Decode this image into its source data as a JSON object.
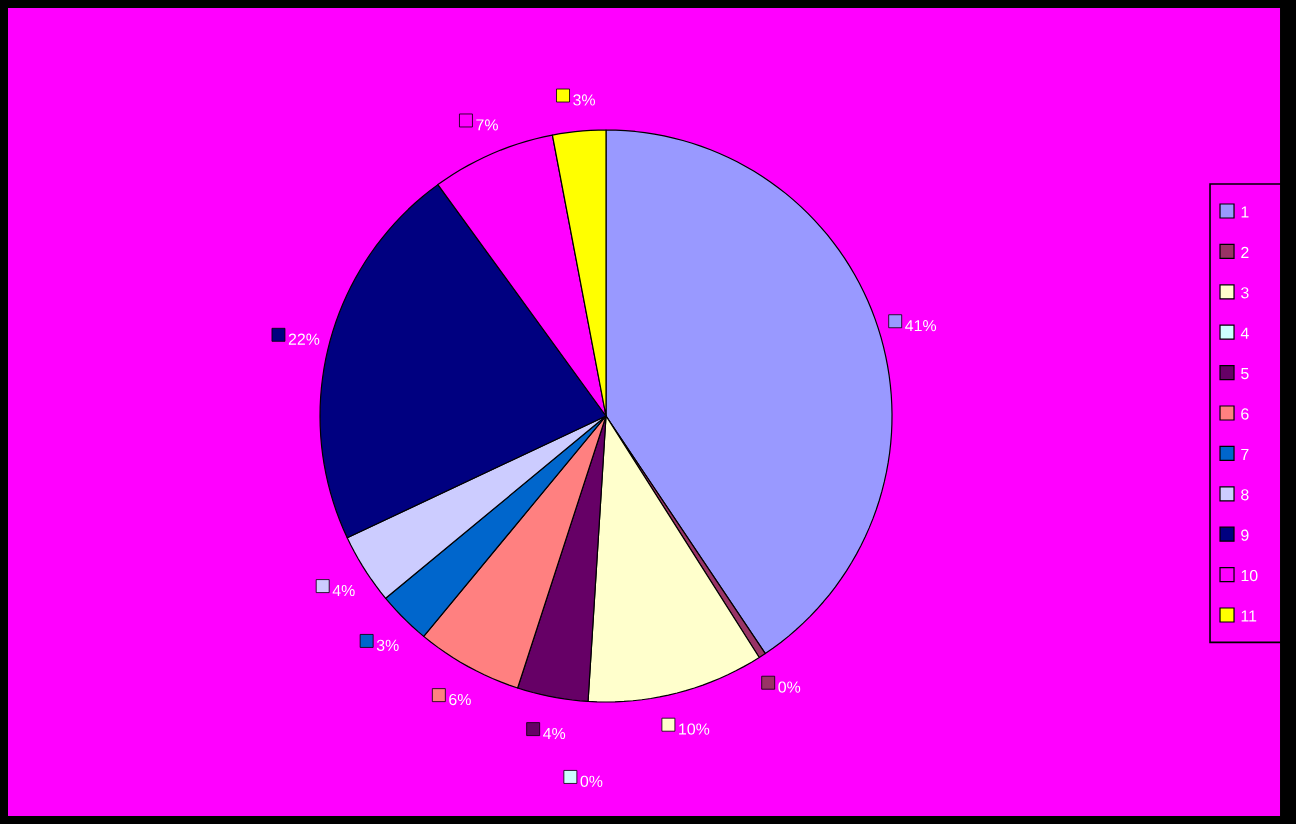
{
  "chart_data": {
    "type": "pie",
    "categories": [
      "1",
      "2",
      "3",
      "4",
      "5",
      "6",
      "7",
      "8",
      "9",
      "10",
      "11"
    ],
    "values": [
      40.6,
      0.4,
      10,
      0,
      4,
      6,
      3,
      4,
      22,
      7,
      3
    ],
    "value_labels": [
      "41%",
      "0%",
      "10%",
      "0%",
      "4%",
      "6%",
      "3%",
      "4%",
      "22%",
      "7%",
      "3%"
    ],
    "colors": [
      "#9999ff",
      "#993366",
      "#ffffcc",
      "#ccffff",
      "#660066",
      "#ff8080",
      "#0066cc",
      "#ccccff",
      "#000080",
      "#ff00ff",
      "#ffff00"
    ],
    "legend": "right"
  }
}
